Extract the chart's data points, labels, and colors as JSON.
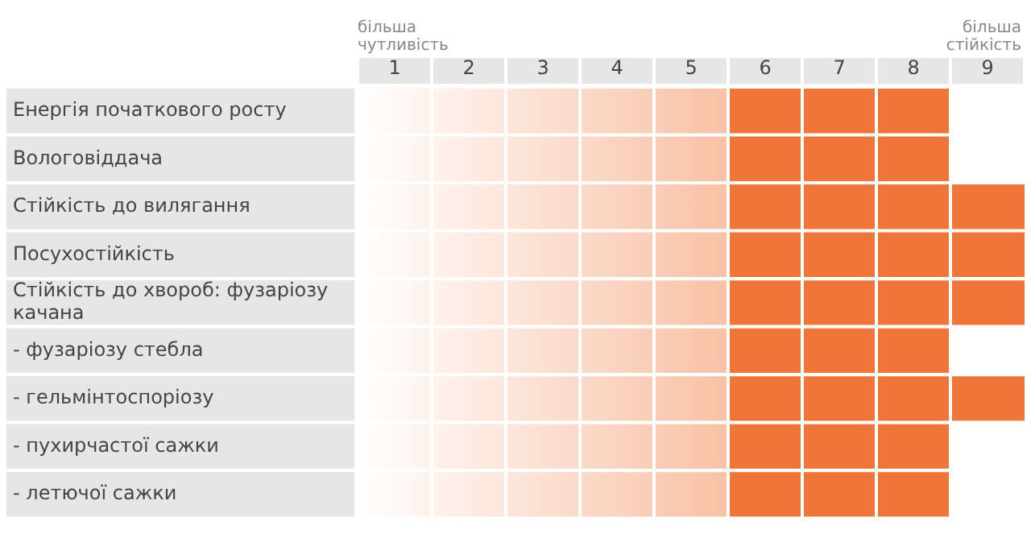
{
  "chart_data": {
    "type": "bar",
    "orientation": "horizontal",
    "categories": [
      "Енергія початкового росту",
      "Вологовіддача",
      "Стійкість до вилягання",
      "Посухостійкість",
      "Стійкість до хвороб: фузаріозу качана",
      "- фузаріозу стебла",
      "- гельмінтоспоріозу",
      "- пухирчастої сажки",
      "- летючої сажки"
    ],
    "values": [
      8,
      8,
      9,
      9,
      9,
      8,
      9,
      8,
      8
    ],
    "color": "#f07538",
    "xlim": [
      0,
      9
    ],
    "xticks": [
      {
        "value": 0.5,
        "label": "1"
      },
      {
        "value": 1.5,
        "label": "2"
      },
      {
        "value": 2.5,
        "label": "3"
      },
      {
        "value": 3.5,
        "label": "4"
      },
      {
        "value": 4.5,
        "label": "5"
      },
      {
        "value": 5.5,
        "label": "6"
      },
      {
        "value": 6.5,
        "label": "7"
      },
      {
        "value": 7.5,
        "label": "8"
      },
      {
        "value": 8.5,
        "label": "9"
      }
    ],
    "annotations": [
      "більша чутливість",
      "більша стійкість"
    ],
    "grid": false,
    "legend": false
  }
}
